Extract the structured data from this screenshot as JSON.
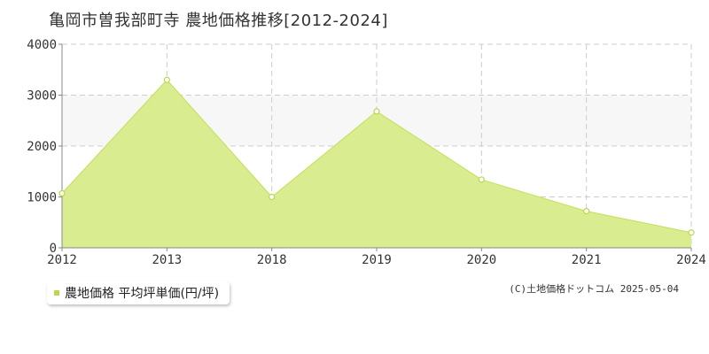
{
  "chart_data": {
    "type": "area",
    "title": "亀岡市曽我部町寺 農地価格推移[2012-2024]",
    "x": [
      "2012",
      "2013",
      "2018",
      "2019",
      "2020",
      "2021",
      "2024"
    ],
    "series": [
      {
        "name": "農地価格 平均坪単価(円/坪)",
        "values": [
          1070,
          3300,
          1000,
          2680,
          1340,
          720,
          300
        ]
      }
    ],
    "yticks": [
      "0",
      "1000",
      "2000",
      "3000",
      "4000"
    ],
    "ylim": [
      0,
      4000
    ],
    "grid": true,
    "legend_position": "bottom-left",
    "colors": {
      "area_fill": "#d9ec90",
      "line": "#c4df5a",
      "marker": "#b5d94a",
      "band": "#f7f7f7"
    }
  },
  "copyright": "(C)土地価格ドットコム 2025-05-04"
}
